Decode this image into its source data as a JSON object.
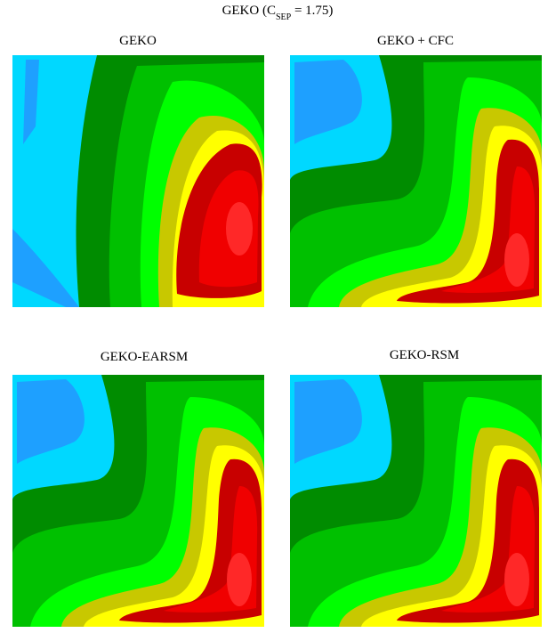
{
  "header": {
    "title": {
      "main": "GEKO (C",
      "subscript": "SEP",
      "rest": " = 1.75)"
    }
  },
  "panels": [
    {
      "title": "GEKO"
    },
    {
      "title": "GEKO + CFC"
    },
    {
      "title": "GEKO-EARSM"
    },
    {
      "title": "GEKO-RSM"
    }
  ]
}
